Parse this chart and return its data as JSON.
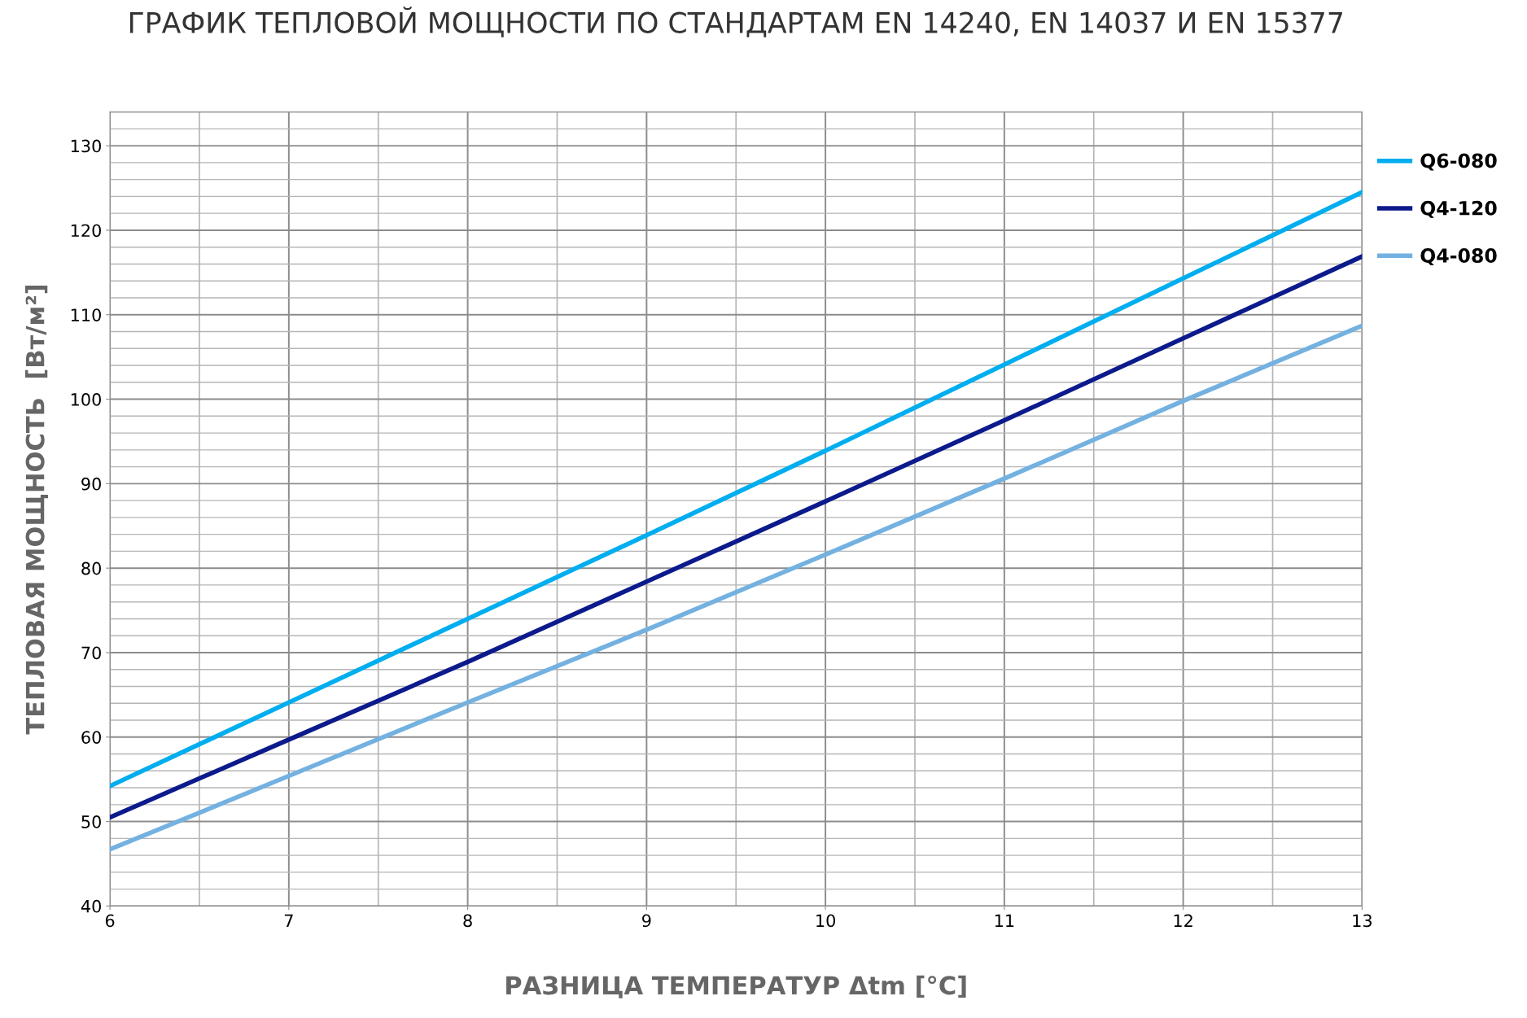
{
  "chart_data": {
    "type": "line",
    "title": "ГРАФИК ТЕПЛОВОЙ МОЩНОСТИ ПО СТАНДАРТАМ EN 14240, EN 14037 И EN 15377",
    "xlabel": "РАЗНИЦА ТЕМПЕРАТУР Δtm [°C]",
    "ylabel": "ТЕПЛОВАЯ МОЩНОСТЬ  [Вт/м²]",
    "x": [
      6,
      7,
      8,
      9,
      10,
      11,
      12,
      13
    ],
    "series": [
      {
        "name": "Q6-080",
        "color": "#00aeef",
        "values": [
          54.2,
          64.1,
          74.0,
          83.9,
          93.9,
          104.1,
          114.3,
          124.5
        ]
      },
      {
        "name": "Q4-120",
        "color": "#0c1a8c",
        "values": [
          50.5,
          59.7,
          68.9,
          78.4,
          87.9,
          97.5,
          107.2,
          116.9
        ]
      },
      {
        "name": "Q4-080",
        "color": "#73b1e1",
        "values": [
          46.7,
          55.4,
          64.1,
          72.7,
          81.6,
          90.6,
          99.8,
          108.7
        ]
      }
    ],
    "xlim": [
      6,
      13
    ],
    "xticks": [
      6,
      7,
      8,
      9,
      10,
      11,
      12,
      13
    ],
    "ylim": [
      40,
      134
    ],
    "yticks": [
      40,
      50,
      60,
      70,
      80,
      90,
      100,
      110,
      120,
      130
    ],
    "grid": true,
    "legend": "top right",
    "marker": "none",
    "line_style": "solid"
  }
}
